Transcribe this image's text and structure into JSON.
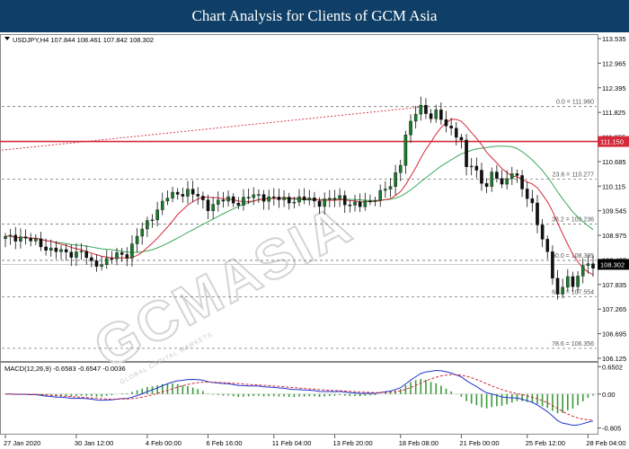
{
  "header": {
    "title": "Chart Analysis for Clients of GCM Asia"
  },
  "chart_data": {
    "type": "candlestick",
    "symbol_info": "USDJPY,H4  107.844 108.461 107.842 108.302",
    "watermark": "GCMASIA",
    "watermark_sub": "GLOBAL CAPITAL MARKETS",
    "price_axis": {
      "min": 106.125,
      "max": 113.535,
      "ticks": [
        113.535,
        112.965,
        112.395,
        111.825,
        111.255,
        110.685,
        110.115,
        109.545,
        108.975,
        108.405,
        107.835,
        107.265,
        106.695,
        106.125
      ],
      "tick_labels": [
        "113.535",
        "112.965",
        "112.395",
        "111.825",
        "111.255",
        "110.685",
        "110.115",
        "109.545",
        "108.975",
        "108.405",
        "107.835",
        "107.265",
        "106.695",
        "106.125"
      ]
    },
    "current_price": {
      "value": 108.302,
      "label": "108.302"
    },
    "red_level": {
      "value": 111.15,
      "label": "111.150",
      "color": "#d42a3a"
    },
    "fib_levels": [
      {
        "value": 111.96,
        "label": "0.0 = 111.960"
      },
      {
        "value": 110.277,
        "label": "23.6 = 110.277"
      },
      {
        "value": 109.236,
        "label": "38.2 = 109.236"
      },
      {
        "value": 108.395,
        "label": "50.0 = 108.395"
      },
      {
        "value": 107.554,
        "label": "61.8 = 107.554"
      },
      {
        "value": 106.356,
        "label": "78.6 = 106.356"
      }
    ],
    "date_labels": [
      {
        "label": "27 Jan 2020",
        "bar": 0
      },
      {
        "label": "30 Jan 12:00",
        "bar": 14
      },
      {
        "label": "4 Feb 00:00",
        "bar": 28
      },
      {
        "label": "6 Feb 16:00",
        "bar": 40
      },
      {
        "label": "11 Feb 04:00",
        "bar": 53
      },
      {
        "label": "13 Feb 20:00",
        "bar": 65
      },
      {
        "label": "18 Feb 08:00",
        "bar": 78
      },
      {
        "label": "21 Feb 00:00",
        "bar": 90
      },
      {
        "label": "25 Feb 12:00",
        "bar": 103
      },
      {
        "label": "28 Feb 04:00",
        "bar": 115
      }
    ],
    "macd": {
      "label": "MACD(12,26,9) -0.6583 -0.6547 -0.0036",
      "axis_labels": [
        {
          "value": 0.6502,
          "label": "0.6502"
        },
        {
          "value": 0,
          "label": "0.00"
        },
        {
          "value": -0.805,
          "label": "-0.805"
        }
      ],
      "min": -0.9,
      "max": 0.7
    },
    "colors": {
      "bull": "#1a7a2a",
      "bear": "#111111",
      "ma_fast": "#d42a3a",
      "ma_slow": "#3aa85a",
      "macd_line": "#2233cc",
      "signal": "#d42a3a",
      "histogram": "#3a9a3a",
      "fib": "#777777"
    },
    "key_points": [
      [
        0,
        108.9
      ],
      [
        3,
        108.95
      ],
      [
        6,
        108.8
      ],
      [
        9,
        108.65
      ],
      [
        12,
        108.55
      ],
      [
        15,
        108.6
      ],
      [
        17,
        108.3
      ],
      [
        19,
        108.35
      ],
      [
        22,
        108.5
      ],
      [
        24,
        108.55
      ],
      [
        26,
        108.95
      ],
      [
        28,
        109.25
      ],
      [
        30,
        109.6
      ],
      [
        32,
        109.85
      ],
      [
        34,
        109.95
      ],
      [
        36,
        110.0
      ],
      [
        38,
        109.85
      ],
      [
        40,
        109.65
      ],
      [
        42,
        109.75
      ],
      [
        44,
        109.8
      ],
      [
        46,
        109.75
      ],
      [
        48,
        109.85
      ],
      [
        50,
        109.9
      ],
      [
        52,
        109.85
      ],
      [
        54,
        109.8
      ],
      [
        56,
        109.8
      ],
      [
        58,
        109.8
      ],
      [
        60,
        109.8
      ],
      [
        62,
        109.75
      ],
      [
        64,
        109.8
      ],
      [
        66,
        109.85
      ],
      [
        68,
        109.7
      ],
      [
        70,
        109.65
      ],
      [
        72,
        109.8
      ],
      [
        74,
        109.95
      ],
      [
        76,
        110.1
      ],
      [
        78,
        110.7
      ],
      [
        79,
        111.3
      ],
      [
        80,
        111.55
      ],
      [
        81,
        111.8
      ],
      [
        82,
        111.95
      ],
      [
        83,
        111.85
      ],
      [
        84,
        111.75
      ],
      [
        85,
        111.8
      ],
      [
        86,
        111.65
      ],
      [
        87,
        111.5
      ],
      [
        88,
        111.45
      ],
      [
        89,
        111.35
      ],
      [
        90,
        111.15
      ],
      [
        91,
        110.5
      ],
      [
        92,
        110.6
      ],
      [
        93,
        110.45
      ],
      [
        94,
        110.25
      ],
      [
        95,
        110.15
      ],
      [
        96,
        110.35
      ],
      [
        97,
        110.3
      ],
      [
        98,
        110.15
      ],
      [
        99,
        110.3
      ],
      [
        100,
        110.5
      ],
      [
        101,
        110.3
      ],
      [
        102,
        110.0
      ],
      [
        103,
        109.85
      ],
      [
        104,
        109.7
      ],
      [
        105,
        109.3
      ],
      [
        106,
        108.9
      ],
      [
        107,
        108.5
      ],
      [
        108,
        108.0
      ],
      [
        109,
        107.6
      ],
      [
        110,
        107.8
      ],
      [
        111,
        108.1
      ],
      [
        112,
        107.7
      ],
      [
        113,
        108.0
      ],
      [
        114,
        108.3
      ]
    ]
  }
}
